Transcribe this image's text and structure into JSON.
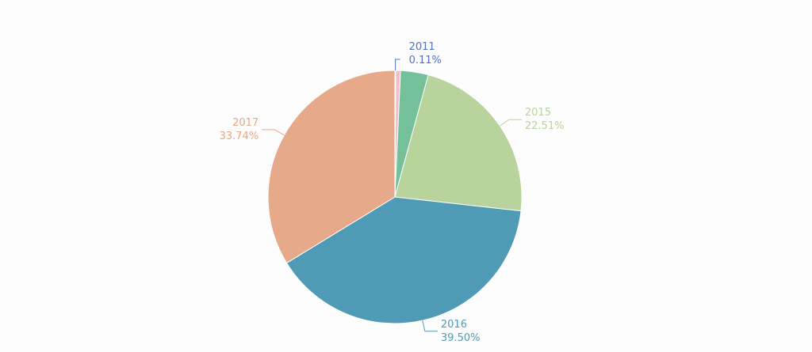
{
  "chart_data": {
    "type": "pie",
    "title": "",
    "start_angle_deg": 90,
    "direction": "clockwise",
    "slices": [
      {
        "label": "2011",
        "value": 0.11,
        "display": "0.11%",
        "color": "#5470c6",
        "labeled": true
      },
      {
        "label": "",
        "value": 0.6,
        "display": "",
        "color": "#f4bcc8",
        "labeled": false
      },
      {
        "label": "",
        "value": 3.54,
        "display": "",
        "color": "#73c09b",
        "labeled": false
      },
      {
        "label": "2015",
        "value": 22.51,
        "display": "22.51%",
        "color": "#b8d49c",
        "labeled": true
      },
      {
        "label": "2016",
        "value": 39.5,
        "display": "39.50%",
        "color": "#4f9bb5",
        "labeled": true
      },
      {
        "label": "2017",
        "value": 33.74,
        "display": "33.74%",
        "color": "#e6a98a",
        "labeled": true
      }
    ]
  }
}
